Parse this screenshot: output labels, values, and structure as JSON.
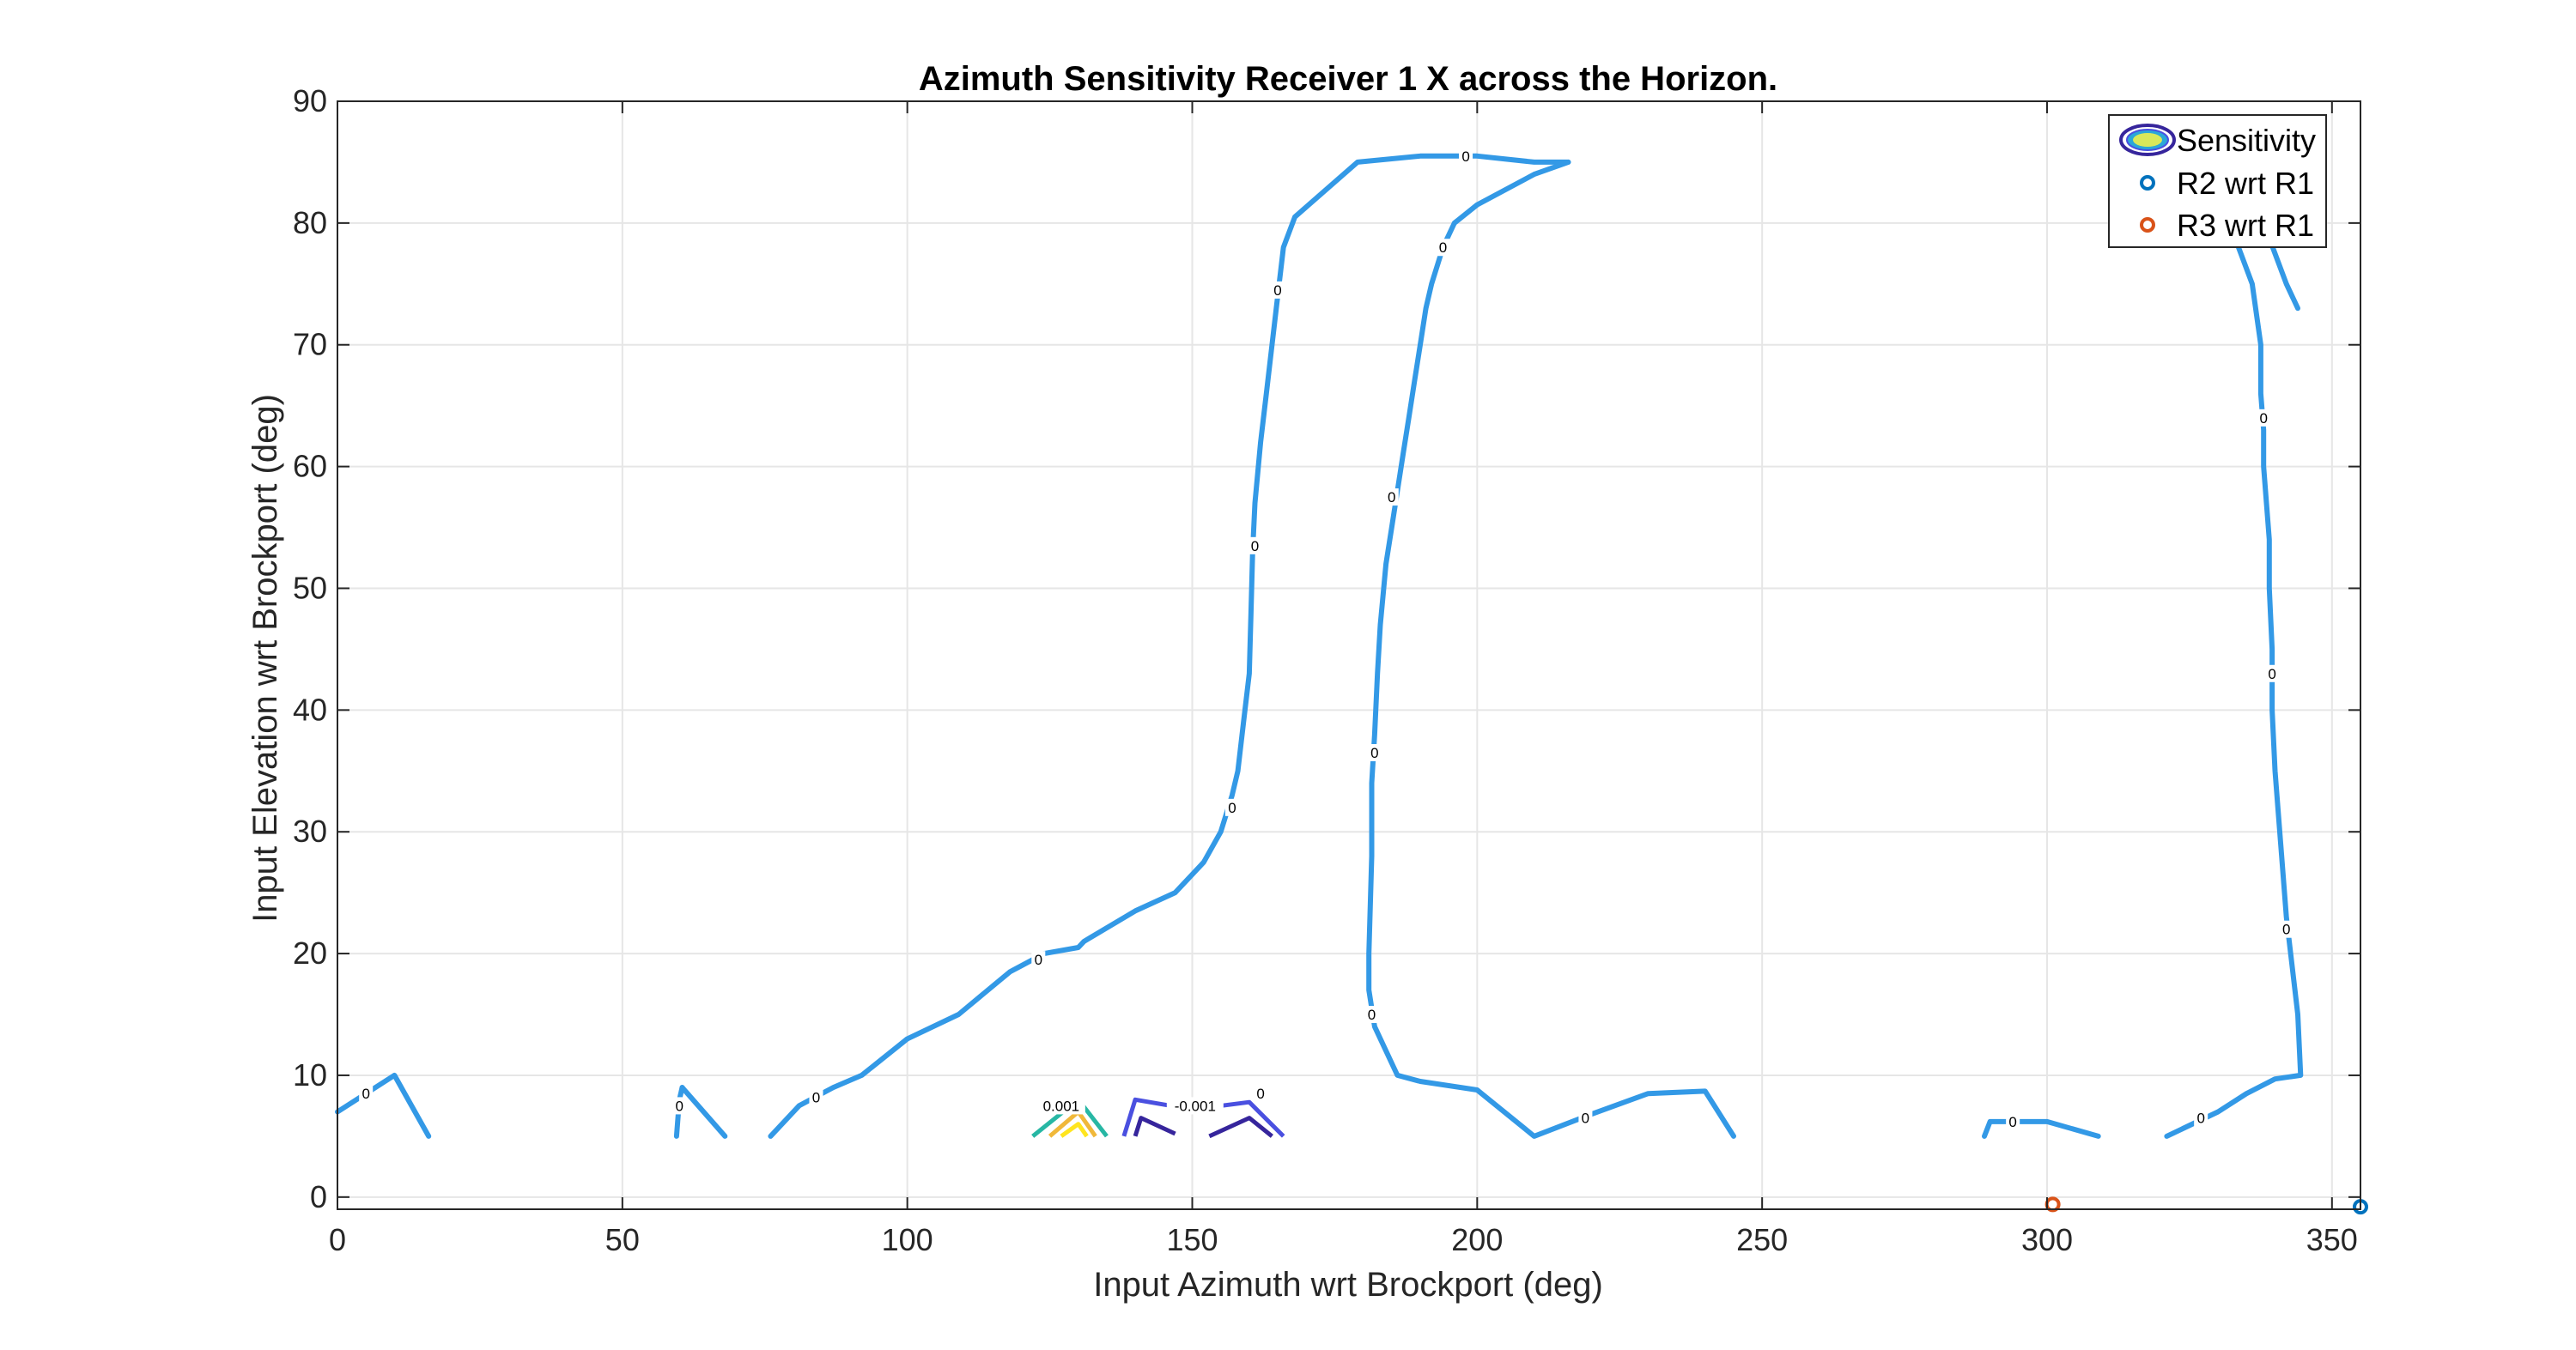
{
  "chart_data": {
    "type": "line",
    "title": "Azimuth Sensitivity Receiver 1 X across the Horizon.",
    "xlabel": "Input Azimuth wrt Brockport (deg)",
    "ylabel": "Input Elevation wrt Brockport (deg)",
    "xlim": [
      0,
      355
    ],
    "ylim": [
      -1,
      90
    ],
    "xticks": [
      0,
      50,
      100,
      150,
      200,
      250,
      300,
      350
    ],
    "yticks": [
      0,
      10,
      20,
      30,
      40,
      50,
      60,
      70,
      80,
      90
    ],
    "grid": true,
    "legend_position": "top-right",
    "legend": [
      "Sensitivity",
      "R2 wrt R1",
      "R3 wrt R1"
    ],
    "colors": {
      "zero_contour": "#3399e6",
      "r2_marker": "#0072bd",
      "r3_marker": "#d95319",
      "pos1": "#27b7a4",
      "pos2": "#f0b83a",
      "pos3": "#ffe51f",
      "neg1": "#4a50e0",
      "neg2": "#36259c",
      "axis": "#262626",
      "grid": "#e6e6e6"
    },
    "contours": [
      {
        "level": 0,
        "label": "0",
        "points": [
          [
            0,
            7
          ],
          [
            10,
            10
          ],
          [
            16,
            5
          ]
        ]
      },
      {
        "level": 0,
        "label": "0",
        "points": [
          [
            59.5,
            5
          ],
          [
            60,
            8
          ],
          [
            60.5,
            9
          ]
        ]
      },
      {
        "level": 0,
        "label": "0",
        "points": [
          [
            60.5,
            9
          ],
          [
            68,
            5
          ]
        ]
      },
      {
        "level": 0,
        "label": "0",
        "points": [
          [
            76,
            5
          ],
          [
            81,
            7.5
          ],
          [
            87,
            9
          ],
          [
            92,
            10
          ],
          [
            100,
            13
          ],
          [
            109,
            15
          ],
          [
            118,
            18.5
          ],
          [
            120,
            19
          ],
          [
            124,
            20
          ],
          [
            130,
            20.5
          ],
          [
            131,
            21
          ],
          [
            140,
            23.5
          ],
          [
            147,
            25
          ],
          [
            152,
            27.5
          ],
          [
            155,
            30
          ],
          [
            157,
            33
          ],
          [
            158,
            35
          ],
          [
            159,
            39
          ],
          [
            160,
            43
          ],
          [
            160.3,
            48
          ],
          [
            160.6,
            53
          ],
          [
            161,
            57
          ],
          [
            162,
            62
          ],
          [
            163,
            66
          ],
          [
            164,
            70
          ],
          [
            165,
            74
          ],
          [
            166,
            78
          ],
          [
            168,
            80.5
          ],
          [
            179,
            85
          ],
          [
            190,
            85.5
          ],
          [
            200,
            85.5
          ],
          [
            210,
            85
          ],
          [
            216,
            85
          ]
        ]
      },
      {
        "level": 0,
        "label": "0",
        "points": [
          [
            216,
            85
          ],
          [
            210,
            84
          ],
          [
            200,
            81.5
          ],
          [
            196,
            80
          ],
          [
            194,
            78
          ],
          [
            192,
            75
          ],
          [
            191,
            73
          ],
          [
            190,
            70
          ],
          [
            189,
            67
          ],
          [
            188,
            64
          ],
          [
            187,
            61
          ],
          [
            186,
            58
          ],
          [
            185,
            55
          ],
          [
            184,
            52
          ],
          [
            183,
            47
          ],
          [
            182.5,
            43
          ],
          [
            182,
            38
          ],
          [
            181.5,
            34
          ],
          [
            181.5,
            28
          ],
          [
            181,
            20
          ],
          [
            181,
            17
          ],
          [
            182,
            14
          ],
          [
            186,
            10
          ],
          [
            190,
            9.5
          ],
          [
            200,
            8.8
          ],
          [
            210,
            5
          ],
          [
            220,
            6.8
          ],
          [
            230,
            8.5
          ],
          [
            240,
            8.7
          ],
          [
            245,
            5
          ]
        ]
      },
      {
        "level": 0,
        "label": "0",
        "points": [
          [
            289,
            5
          ],
          [
            290,
            6.2
          ],
          [
            294,
            6.2
          ],
          [
            300,
            6.2
          ],
          [
            309,
            5
          ]
        ]
      },
      {
        "level": 0,
        "label": "0",
        "points": [
          [
            321,
            5
          ],
          [
            330,
            7
          ],
          [
            335,
            8.5
          ],
          [
            340,
            9.7
          ],
          [
            344.5,
            10
          ],
          [
            344,
            15
          ],
          [
            342,
            23
          ],
          [
            341,
            29
          ],
          [
            340,
            35
          ],
          [
            339.5,
            40
          ],
          [
            339.5,
            45
          ],
          [
            339,
            50
          ],
          [
            339,
            54
          ],
          [
            338.5,
            57
          ],
          [
            338,
            60
          ],
          [
            338,
            63
          ],
          [
            337.5,
            66
          ],
          [
            337.5,
            70
          ],
          [
            336,
            75
          ],
          [
            332,
            80
          ],
          [
            330,
            85
          ]
        ]
      },
      {
        "level": 0,
        "label": "0",
        "points": [
          [
            338,
            80
          ],
          [
            342,
            75
          ],
          [
            344,
            73
          ]
        ]
      }
    ],
    "contour_labels": [
      {
        "text": "0",
        "x": 5,
        "y": 8.5
      },
      {
        "text": "0",
        "x": 60,
        "y": 7.5
      },
      {
        "text": "0",
        "x": 84,
        "y": 8.2
      },
      {
        "text": "0",
        "x": 123,
        "y": 19.5
      },
      {
        "text": "0",
        "x": 157,
        "y": 32
      },
      {
        "text": "0",
        "x": 161,
        "y": 53.5
      },
      {
        "text": "0",
        "x": 165,
        "y": 74.5
      },
      {
        "text": "0",
        "x": 198,
        "y": 85.5
      },
      {
        "text": "0",
        "x": 194,
        "y": 78
      },
      {
        "text": "0",
        "x": 185,
        "y": 57.5
      },
      {
        "text": "0",
        "x": 182,
        "y": 36.5
      },
      {
        "text": "0",
        "x": 181.5,
        "y": 15
      },
      {
        "text": "0",
        "x": 219,
        "y": 6.5
      },
      {
        "text": "0",
        "x": 294,
        "y": 6.2
      },
      {
        "text": "0",
        "x": 327,
        "y": 6.5
      },
      {
        "text": "0",
        "x": 342,
        "y": 22
      },
      {
        "text": "0",
        "x": 339.5,
        "y": 43
      },
      {
        "text": "0",
        "x": 338,
        "y": 64
      },
      {
        "text": "0",
        "x": 162,
        "y": 8.5
      },
      {
        "text": "0.001",
        "x": 127,
        "y": 7.5
      },
      {
        "text": "-0.001",
        "x": 150.5,
        "y": 7.5
      }
    ],
    "sensitivity_peaks": [
      {
        "level": 0.001,
        "color_key": "pos1",
        "points": [
          [
            122,
            5
          ],
          [
            130,
            8
          ],
          [
            135,
            5
          ]
        ]
      },
      {
        "level": 0.002,
        "color_key": "pos2",
        "points": [
          [
            125,
            5
          ],
          [
            130,
            7
          ],
          [
            133,
            5
          ]
        ]
      },
      {
        "level": 0.003,
        "color_key": "pos3",
        "points": [
          [
            127,
            5
          ],
          [
            130,
            6
          ],
          [
            131.5,
            5
          ]
        ]
      },
      {
        "level": -0.001,
        "color_key": "neg1",
        "points": [
          [
            138,
            5
          ],
          [
            140,
            8
          ],
          [
            150,
            7.2
          ],
          [
            160,
            7.8
          ],
          [
            166,
            5
          ]
        ]
      },
      {
        "level": -0.002,
        "color_key": "neg2",
        "points": [
          [
            140,
            5
          ],
          [
            141,
            6.5
          ],
          [
            147,
            5.2
          ]
        ]
      },
      {
        "level": -0.002,
        "color_key": "neg2",
        "points": [
          [
            153,
            5
          ],
          [
            160,
            6.5
          ],
          [
            164,
            5
          ]
        ]
      }
    ],
    "series": [
      {
        "name": "R2 wrt R1",
        "points": [
          [
            355,
            -0.8
          ]
        ]
      },
      {
        "name": "R3 wrt R1",
        "points": [
          [
            301,
            -0.6
          ]
        ]
      }
    ]
  }
}
